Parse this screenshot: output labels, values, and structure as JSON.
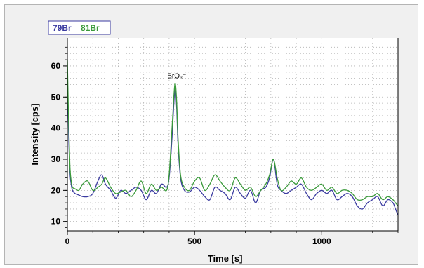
{
  "chart_data": {
    "type": "line",
    "xlabel": "Time [s]",
    "ylabel": "Intensity [cps]",
    "xlim": [
      0,
      1300
    ],
    "ylim": [
      7,
      69
    ],
    "xticks": [
      0,
      500,
      1000
    ],
    "yticks": [
      10,
      20,
      30,
      40,
      50,
      60
    ],
    "grid": true,
    "legend_position": "top-left",
    "annotations": [
      {
        "text": "BrO₃⁻",
        "x": 430,
        "y": 56
      }
    ],
    "series": [
      {
        "name": "79Br",
        "color": "#3a3aa0",
        "x": [
          0,
          5,
          10,
          15,
          20,
          30,
          45,
          60,
          80,
          100,
          120,
          135,
          150,
          170,
          190,
          210,
          230,
          250,
          270,
          290,
          310,
          330,
          350,
          370,
          390,
          400,
          410,
          420,
          425,
          430,
          435,
          445,
          460,
          480,
          500,
          520,
          540,
          560,
          580,
          600,
          620,
          640,
          660,
          680,
          700,
          720,
          740,
          760,
          780,
          795,
          810,
          825,
          840,
          860,
          880,
          900,
          920,
          940,
          960,
          980,
          1000,
          1020,
          1040,
          1060,
          1080,
          1100,
          1120,
          1140,
          1160,
          1180,
          1200,
          1220,
          1240,
          1260,
          1280,
          1290,
          1300
        ],
        "y": [
          58,
          38,
          26,
          22,
          20,
          19,
          18.5,
          18,
          18,
          19,
          23,
          25,
          22,
          20,
          17.5,
          20,
          19,
          20,
          21,
          20,
          17,
          20,
          19,
          22,
          21,
          24,
          35,
          50,
          52,
          46,
          35,
          24,
          20,
          19.5,
          21,
          20,
          18,
          17,
          21,
          20,
          19,
          17,
          21,
          19,
          17.5,
          20,
          16,
          20,
          21,
          24,
          30,
          22,
          20,
          19,
          20,
          21,
          22,
          19,
          17,
          19,
          20,
          19,
          20,
          17,
          18,
          19,
          18,
          15,
          14,
          16,
          17,
          18,
          15,
          17,
          16,
          14,
          12
        ]
      },
      {
        "name": "81Br",
        "color": "#3a9a3a",
        "x": [
          0,
          5,
          10,
          15,
          20,
          30,
          45,
          60,
          80,
          100,
          120,
          135,
          150,
          170,
          190,
          210,
          230,
          250,
          270,
          290,
          310,
          330,
          350,
          370,
          390,
          400,
          410,
          420,
          425,
          430,
          435,
          445,
          460,
          480,
          500,
          520,
          540,
          560,
          580,
          600,
          620,
          640,
          660,
          680,
          700,
          720,
          740,
          760,
          780,
          795,
          810,
          825,
          840,
          860,
          880,
          900,
          920,
          940,
          960,
          980,
          1000,
          1020,
          1040,
          1060,
          1080,
          1100,
          1120,
          1140,
          1160,
          1180,
          1200,
          1220,
          1240,
          1260,
          1280,
          1290,
          1300
        ],
        "y": [
          62,
          42,
          28,
          23,
          21,
          20.5,
          20,
          22,
          23,
          20,
          21,
          22,
          24,
          21,
          19,
          19.5,
          20,
          18,
          20,
          23,
          19,
          22,
          20,
          21,
          20,
          25,
          38,
          52,
          54,
          48,
          37,
          25,
          21,
          20,
          23,
          24,
          20,
          22,
          25,
          23,
          21,
          20,
          24,
          22,
          20,
          21,
          18,
          20,
          22,
          25,
          30,
          24,
          20,
          21,
          23,
          22,
          24,
          21,
          20,
          21,
          22,
          20,
          21,
          19,
          20,
          20,
          19,
          17,
          17,
          18,
          18,
          19,
          17,
          18,
          17,
          16,
          15
        ]
      }
    ]
  }
}
